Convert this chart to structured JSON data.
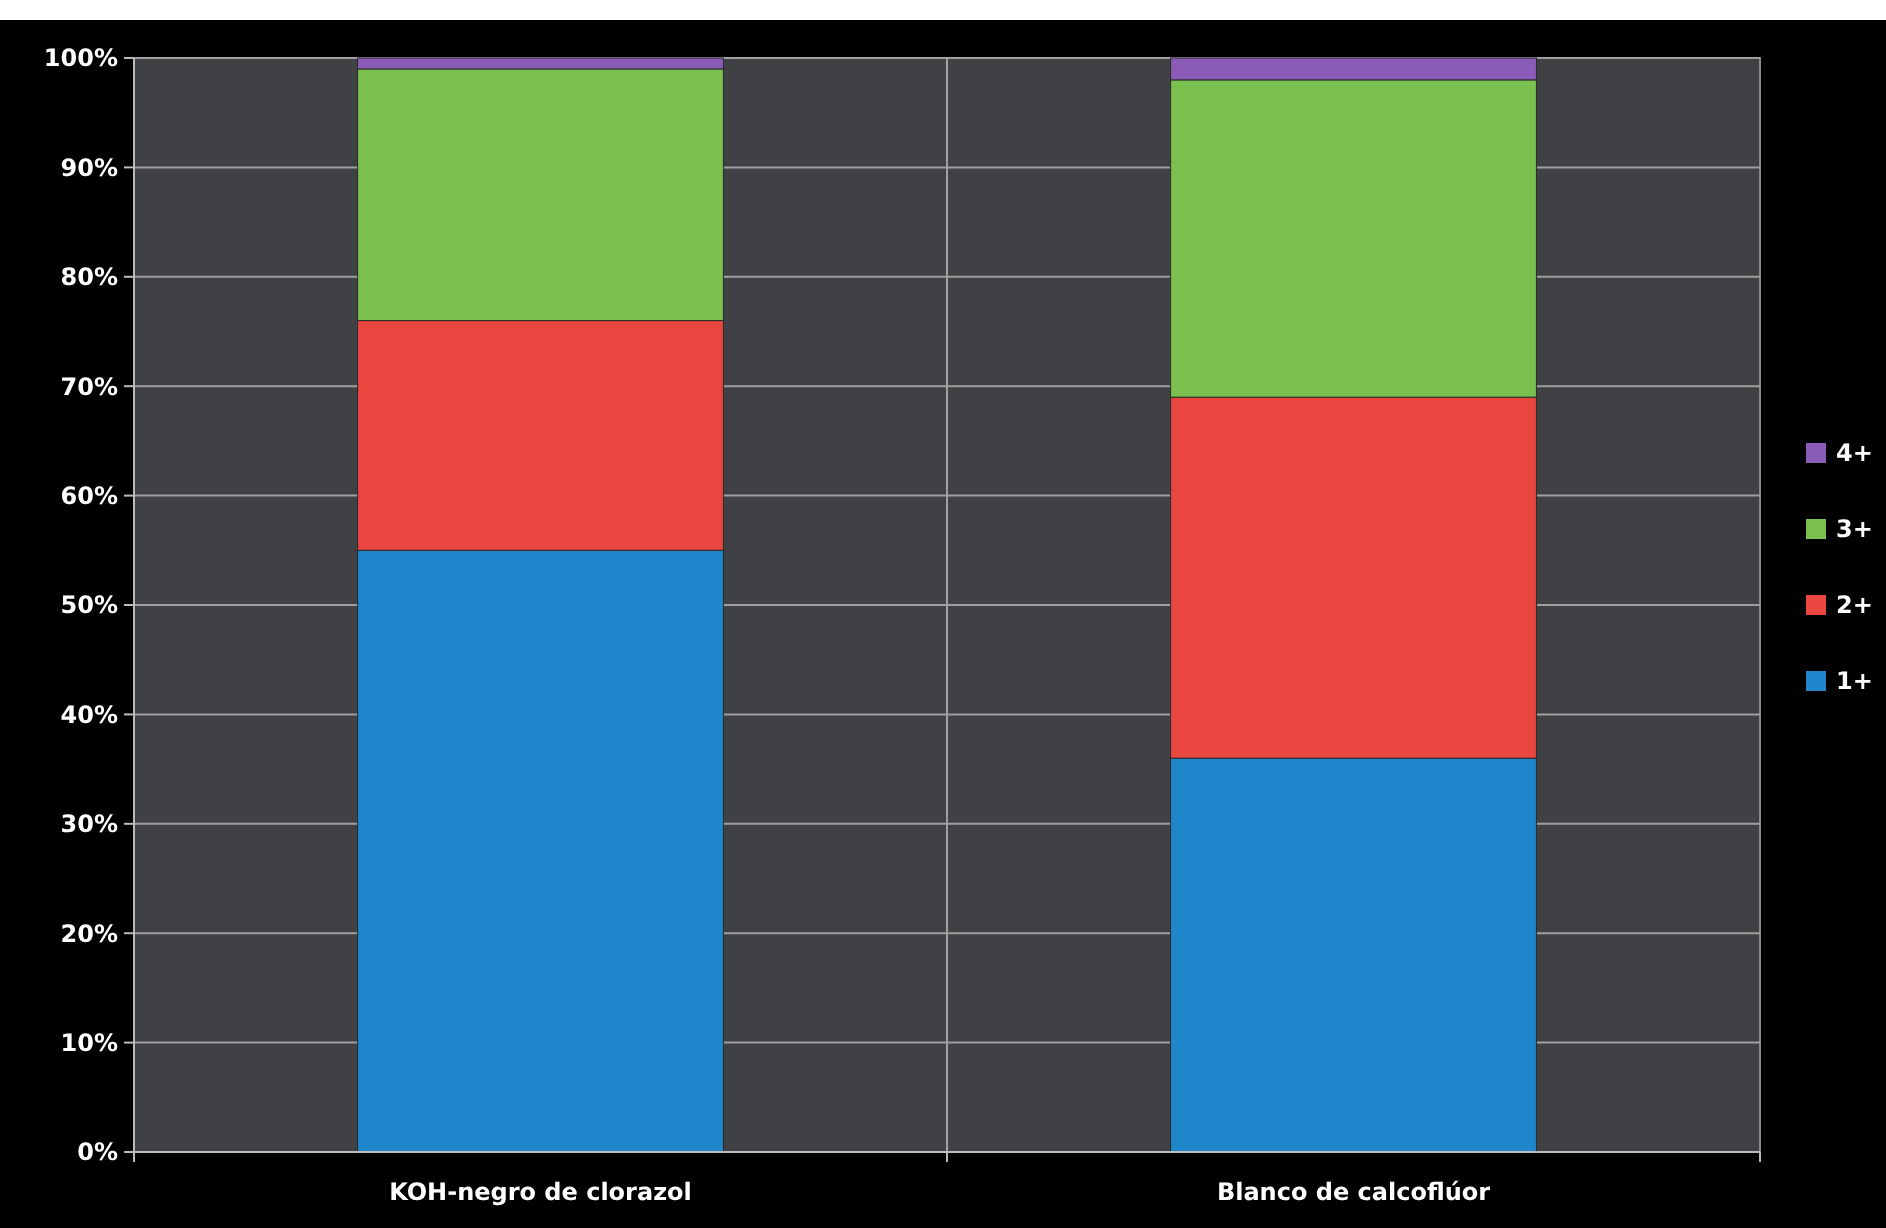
{
  "chart_data": {
    "type": "bar",
    "stacked": true,
    "categories": [
      "KOH-negro de clorazol",
      "Blanco de calcoflúor"
    ],
    "series": [
      {
        "name": "1+",
        "color": "#1f86cc",
        "values": [
          55,
          36
        ]
      },
      {
        "name": "2+",
        "color": "#e8463f",
        "values": [
          21,
          33
        ]
      },
      {
        "name": "3+",
        "color": "#7ac04f",
        "values": [
          23,
          29
        ]
      },
      {
        "name": "4+",
        "color": "#8a5cb8",
        "values": [
          1,
          2
        ]
      }
    ],
    "ylim": [
      0,
      100
    ],
    "yticks": [
      {
        "value": 0,
        "label": "0%"
      },
      {
        "value": 10,
        "label": "10%"
      },
      {
        "value": 20,
        "label": "20%"
      },
      {
        "value": 30,
        "label": "30%"
      },
      {
        "value": 40,
        "label": "40%"
      },
      {
        "value": 50,
        "label": "50%"
      },
      {
        "value": 60,
        "label": "60%"
      },
      {
        "value": 70,
        "label": "70%"
      },
      {
        "value": 80,
        "label": "80%"
      },
      {
        "value": 90,
        "label": "90%"
      },
      {
        "value": 100,
        "label": "100%"
      }
    ],
    "grid": true,
    "legend": "right"
  }
}
